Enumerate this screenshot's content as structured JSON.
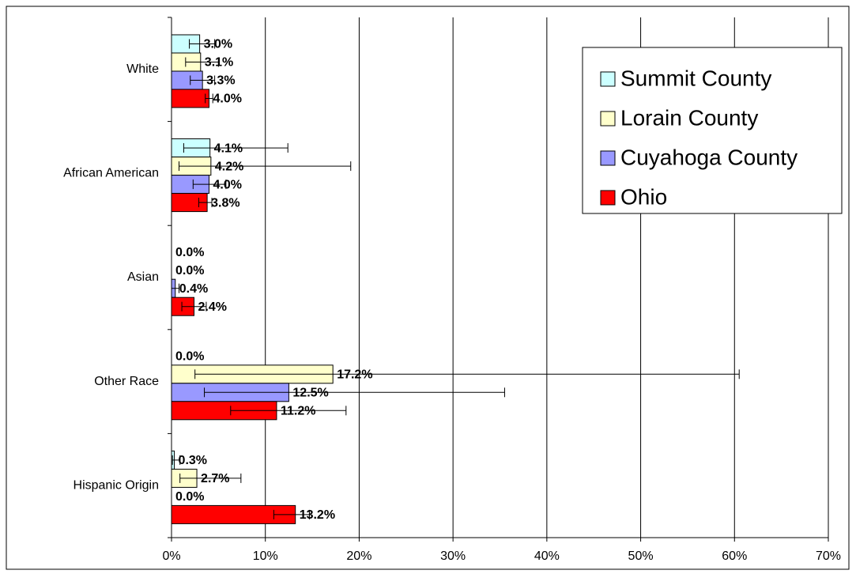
{
  "chart_data": {
    "type": "bar",
    "orientation": "horizontal",
    "categories": [
      "White",
      "African American",
      "Asian",
      "Other Race",
      "Hispanic Origin"
    ],
    "series": [
      {
        "name": "Summit County",
        "color": "#ccffff",
        "values": [
          3.0,
          4.1,
          0.0,
          0.0,
          0.3
        ],
        "value_labels": [
          "3.0%",
          "4.1%",
          "0.0%",
          "0.0%",
          "0.3%"
        ],
        "error_low": [
          1.9,
          1.3,
          null,
          null,
          0.1
        ],
        "error_high": [
          4.6,
          12.4,
          null,
          null,
          0.9
        ]
      },
      {
        "name": "Lorain County",
        "color": "#ffffcc",
        "values": [
          3.1,
          4.2,
          0.0,
          17.2,
          2.7
        ],
        "value_labels": [
          "3.1%",
          "4.2%",
          "0.0%",
          "17.2%",
          "2.7%"
        ],
        "error_low": [
          1.5,
          0.8,
          null,
          2.5,
          0.9
        ],
        "error_high": [
          5.0,
          19.1,
          null,
          60.5,
          7.4
        ]
      },
      {
        "name": "Cuyahoga County",
        "color": "#9999ff",
        "values": [
          3.3,
          4.0,
          0.4,
          12.5,
          0.0
        ],
        "value_labels": [
          "3.3%",
          "4.0%",
          "0.4%",
          "12.5%",
          "0.0%"
        ],
        "error_low": [
          2.0,
          2.3,
          0.0,
          3.5,
          null
        ],
        "error_high": [
          4.6,
          5.8,
          0.8,
          35.5,
          null
        ]
      },
      {
        "name": "Ohio",
        "color": "#ff0000",
        "values": [
          4.0,
          3.8,
          2.4,
          11.2,
          13.2
        ],
        "value_labels": [
          "4.0%",
          "3.8%",
          "2.4%",
          "11.2%",
          "13.2%"
        ],
        "error_low": [
          3.6,
          2.9,
          1.1,
          6.3,
          10.9
        ],
        "error_high": [
          4.4,
          4.3,
          3.7,
          18.6,
          14.7
        ]
      }
    ],
    "xlim": [
      0,
      70
    ],
    "xticks": [
      {
        "value": 0,
        "label": "0%"
      },
      {
        "value": 10,
        "label": "10%"
      },
      {
        "value": 20,
        "label": "20%"
      },
      {
        "value": 30,
        "label": "30%"
      },
      {
        "value": 40,
        "label": "40%"
      },
      {
        "value": 50,
        "label": "50%"
      },
      {
        "value": 60,
        "label": "60%"
      },
      {
        "value": 70,
        "label": "70%"
      }
    ],
    "grid": true,
    "legend": "top-right"
  }
}
